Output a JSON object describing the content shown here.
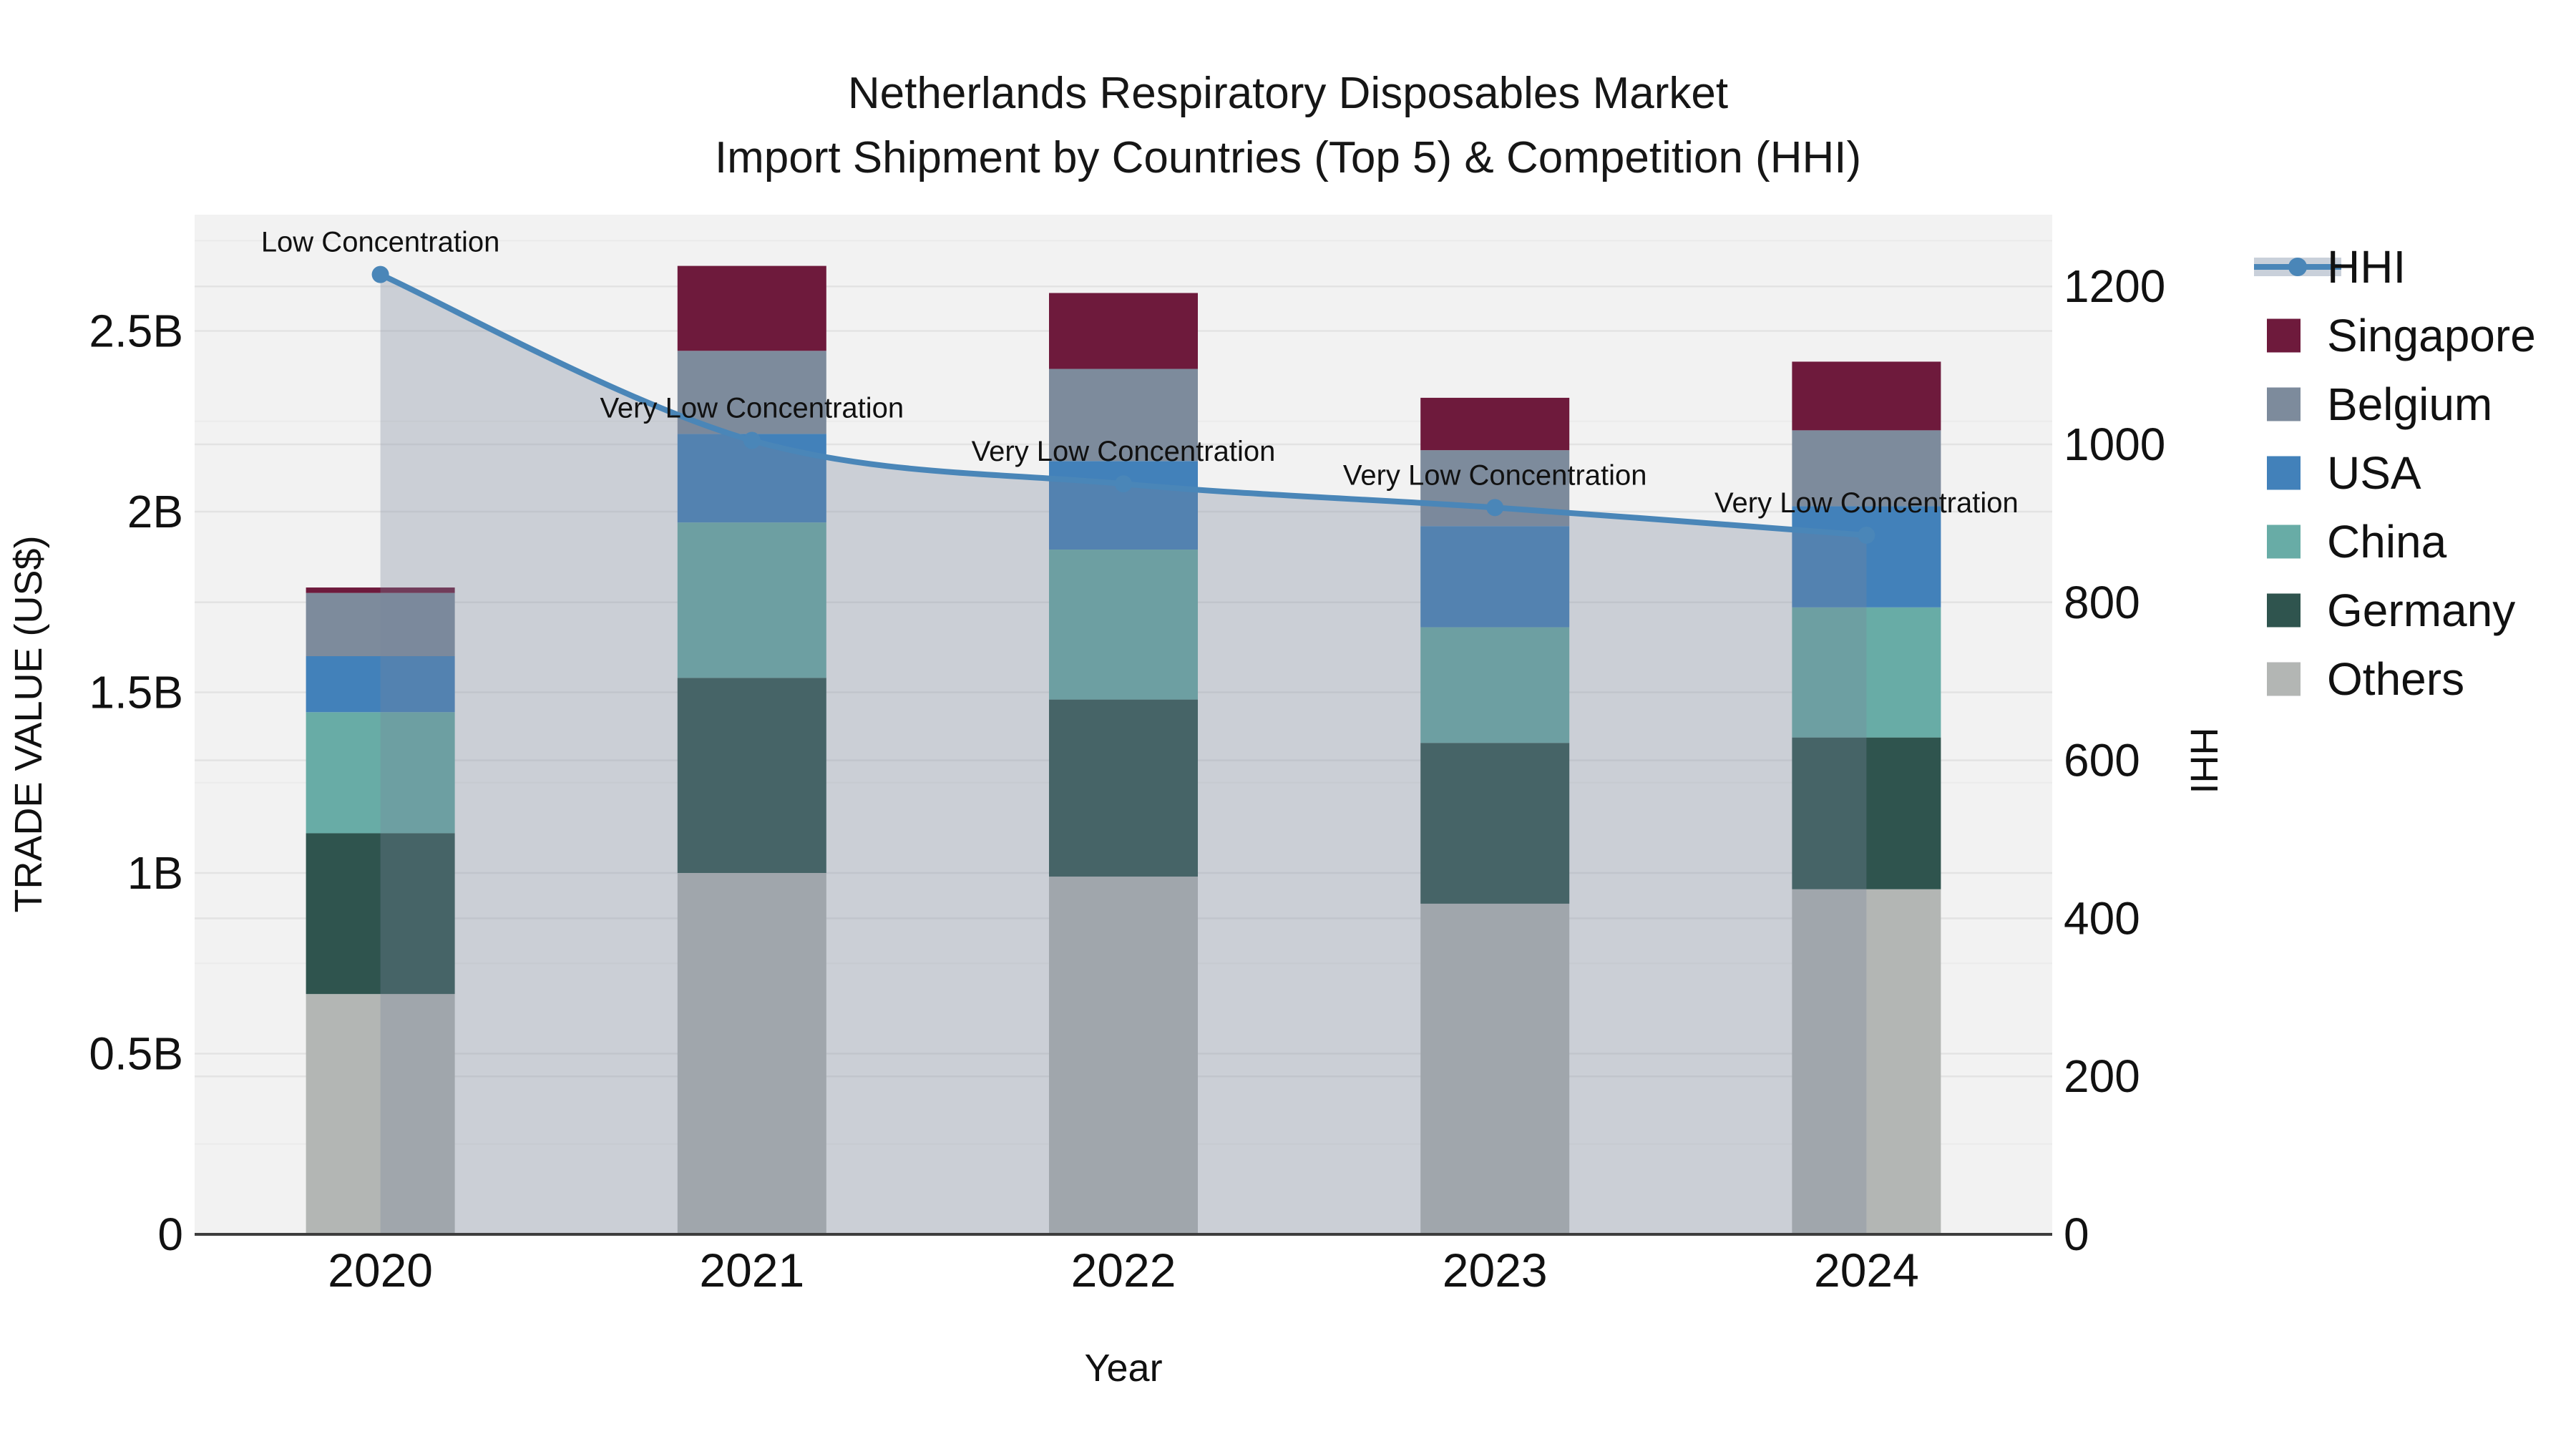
{
  "title": {
    "line1": "Netherlands Respiratory Disposables Market",
    "line2": "Import Shipment by Countries (Top 5) & Competition (HHI)"
  },
  "chart_data": {
    "type": "bar+line",
    "categories": [
      "2020",
      "2021",
      "2022",
      "2023",
      "2024"
    ],
    "stack_order_bottom_to_top": [
      "Others",
      "Germany",
      "China",
      "USA",
      "Belgium",
      "Singapore"
    ],
    "series": [
      {
        "name": "Singapore",
        "color": "#6E1A3C",
        "values": [
          0.015,
          0.235,
          0.21,
          0.145,
          0.19
        ]
      },
      {
        "name": "Belgium",
        "color": "#7D8B9C",
        "values": [
          0.175,
          0.23,
          0.255,
          0.21,
          0.21
        ]
      },
      {
        "name": "USA",
        "color": "#4281BA",
        "values": [
          0.155,
          0.245,
          0.245,
          0.28,
          0.28
        ]
      },
      {
        "name": "China",
        "color": "#68ACA6",
        "values": [
          0.335,
          0.43,
          0.415,
          0.32,
          0.36
        ]
      },
      {
        "name": "Germany",
        "color": "#2F544E",
        "values": [
          0.445,
          0.54,
          0.49,
          0.445,
          0.42
        ]
      },
      {
        "name": "Others",
        "color": "#B3B6B4",
        "values": [
          0.665,
          1.0,
          0.99,
          0.915,
          0.955
        ]
      }
    ],
    "bar_totals_billions": [
      1.79,
      2.68,
      2.61,
      2.32,
      2.42
    ],
    "hhi_line": {
      "name": "HHI",
      "color": "#4A86B8",
      "area_overlay_color": "rgba(121,134,154,0.32)",
      "legend_band_color": "#C9D0DA",
      "values": [
        1215,
        1005,
        950,
        920,
        885
      ]
    },
    "annotations": [
      "Low Concentration",
      "Very Low Concentration",
      "Very Low Concentration",
      "Very Low Concentration",
      "Very Low Concentration"
    ],
    "left_axis": {
      "label": "TRADE VALUE (US$)",
      "ticks": [
        "0",
        "0.5B",
        "1B",
        "1.5B",
        "2B",
        "2.5B"
      ],
      "tick_values": [
        0,
        0.5,
        1,
        1.5,
        2,
        2.5
      ],
      "unit": "billions US$",
      "range": [
        0,
        2.82
      ]
    },
    "right_axis": {
      "label": "HHI",
      "ticks": [
        "0",
        "200",
        "400",
        "600",
        "800",
        "1000",
        "1200"
      ],
      "tick_values": [
        0,
        200,
        400,
        600,
        800,
        1000,
        1200
      ],
      "range": [
        0,
        1290
      ]
    },
    "x_axis": {
      "label": "Year"
    },
    "legend": [
      "HHI",
      "Singapore",
      "Belgium",
      "USA",
      "China",
      "Germany",
      "Others"
    ],
    "style": {
      "plot_bg": "#F2F2F2",
      "grid_major": "#E3E3E3",
      "grid_minor": "#EBEBEB",
      "spine": "#3D3D3D",
      "text": "#111111"
    }
  }
}
